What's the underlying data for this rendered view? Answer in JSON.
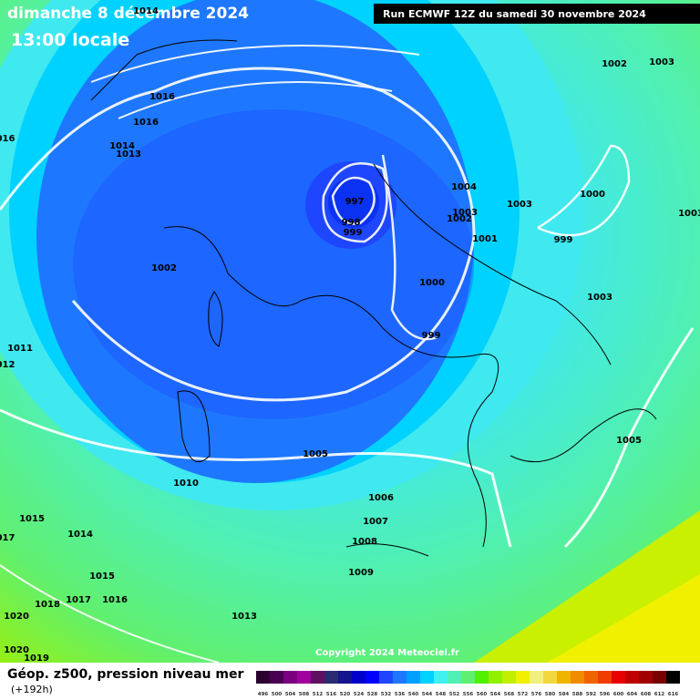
{
  "header": {
    "date": "dimanche 8 décembre 2024",
    "time": "13:00 locale",
    "run": "Run ECMWF 12Z du samedi 30 novembre 2024"
  },
  "isobar_labels": [
    "1014",
    "1016",
    "1016",
    "1014",
    "1013",
    "016",
    "997",
    "998",
    "999",
    "1004",
    "1003",
    "1002",
    "1003",
    "1001",
    "999",
    "1000",
    "1002",
    "1003",
    "1003",
    "1002",
    "1000",
    "1003",
    "999",
    "1011",
    "012",
    "1005",
    "1005",
    "1010",
    "1006",
    "1015",
    "1007",
    "017",
    "1014",
    "1008",
    "1009",
    "1015",
    "1018",
    "1017",
    "1016",
    "1013",
    "1020",
    "1020",
    "1019"
  ],
  "copyright": "Copyright 2024 Meteociel.fr",
  "legend": {
    "title": "Géop. z500, pression niveau mer",
    "subtitle": "(+192h)",
    "labels": [
      "496",
      "500",
      "504",
      "508",
      "512",
      "516",
      "520",
      "524",
      "528",
      "532",
      "536",
      "540",
      "544",
      "548",
      "552",
      "556",
      "560",
      "564",
      "568",
      "572",
      "576",
      "580",
      "584",
      "588",
      "592",
      "596",
      "600",
      "604",
      "608",
      "612",
      "616"
    ],
    "colors": [
      "#2a0030",
      "#4a0050",
      "#7a0080",
      "#a000a0",
      "#601060",
      "#2a2a70",
      "#14148c",
      "#0000c8",
      "#0000ff",
      "#1e46ff",
      "#1e78ff",
      "#00a0ff",
      "#00d2ff",
      "#40f0f0",
      "#50f0b4",
      "#60f070",
      "#50f000",
      "#90f000",
      "#c0f000",
      "#f0f000",
      "#f0f080",
      "#f0d840",
      "#f0b400",
      "#f08c00",
      "#f06400",
      "#f03c00",
      "#e80000",
      "#c00000",
      "#a00000",
      "#780000",
      "#000000"
    ]
  }
}
